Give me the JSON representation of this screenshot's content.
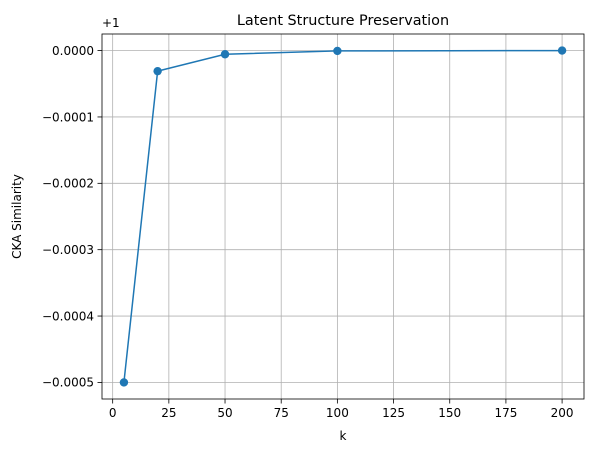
{
  "chart_data": {
    "type": "line",
    "title": "Latent Structure Preservation",
    "xlabel": "k",
    "ylabel": "CKA Similarity",
    "y_offset_label": "+1",
    "x": [
      5,
      20,
      50,
      100,
      200
    ],
    "series": [
      {
        "values": [
          -0.0005,
          -3.1e-05,
          -5.5e-06,
          -5e-07,
          0.0
        ]
      }
    ],
    "xlim": [
      -4.75,
      209.75
    ],
    "ylim": [
      -0.000525,
      2.5e-05
    ],
    "x_ticks": [
      0,
      25,
      50,
      75,
      100,
      125,
      150,
      175,
      200
    ],
    "x_tick_labels": [
      "0",
      "25",
      "50",
      "75",
      "100",
      "125",
      "150",
      "175",
      "200"
    ],
    "y_ticks": [
      -0.0005,
      -0.0004,
      -0.0003,
      -0.0002,
      -0.0001,
      0.0
    ],
    "y_tick_labels": [
      "−0.0005",
      "−0.0004",
      "−0.0003",
      "−0.0002",
      "−0.0001",
      "0.0000"
    ],
    "grid": true,
    "marker": "circle",
    "line_color": "#1f77b4"
  }
}
